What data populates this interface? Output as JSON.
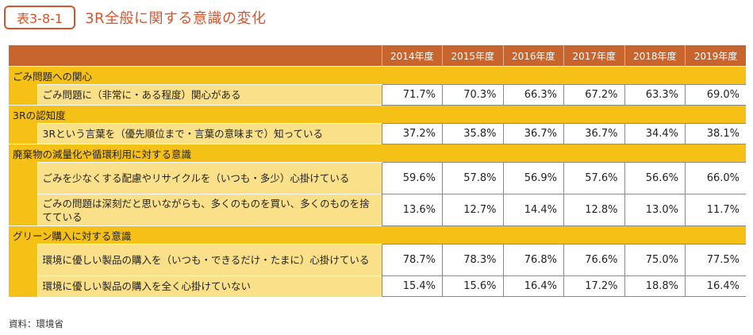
{
  "title": {
    "badge": "表3-8-1",
    "text": "3R全般に関する意識の変化"
  },
  "years": [
    "2014年度",
    "2015年度",
    "2016年度",
    "2017年度",
    "2018年度",
    "2019年度"
  ],
  "sections": [
    {
      "label": "ごみ問題への関心",
      "rows": [
        {
          "label": "ごみ問題に（非常に・ある程度）関心がある",
          "values": [
            "71.7%",
            "70.3%",
            "66.3%",
            "67.2%",
            "63.3%",
            "69.0%"
          ]
        }
      ]
    },
    {
      "label": "3Rの認知度",
      "rows": [
        {
          "label": "3Rという言葉を（優先順位まで・言葉の意味まで）知っている",
          "values": [
            "37.2%",
            "35.8%",
            "36.7%",
            "36.7%",
            "34.4%",
            "38.1%"
          ]
        }
      ]
    },
    {
      "label": "廃棄物の減量化や循環利用に対する意識",
      "rows": [
        {
          "label": "ごみを少なくする配慮やリサイクルを（いつも・多少）心掛けている",
          "values": [
            "59.6%",
            "57.8%",
            "56.9%",
            "57.6%",
            "56.6%",
            "66.0%"
          ]
        },
        {
          "label": "ごみの問題は深刻だと思いながらも、多くのものを買い、多くのものを捨てている",
          "values": [
            "13.6%",
            "12.7%",
            "14.4%",
            "12.8%",
            "13.0%",
            "11.7%"
          ]
        }
      ]
    },
    {
      "label": "グリーン購入に対する意識",
      "rows": [
        {
          "label": "環境に優しい製品の購入を（いつも・できるだけ・たまに）心掛けている",
          "values": [
            "78.7%",
            "78.3%",
            "76.8%",
            "76.6%",
            "75.0%",
            "77.5%"
          ]
        },
        {
          "label": "環境に優しい製品の購入を全く心掛けていない",
          "values": [
            "15.4%",
            "15.6%",
            "16.4%",
            "17.2%",
            "18.8%",
            "16.4%"
          ]
        }
      ]
    }
  ],
  "source": "資料：環境省"
}
